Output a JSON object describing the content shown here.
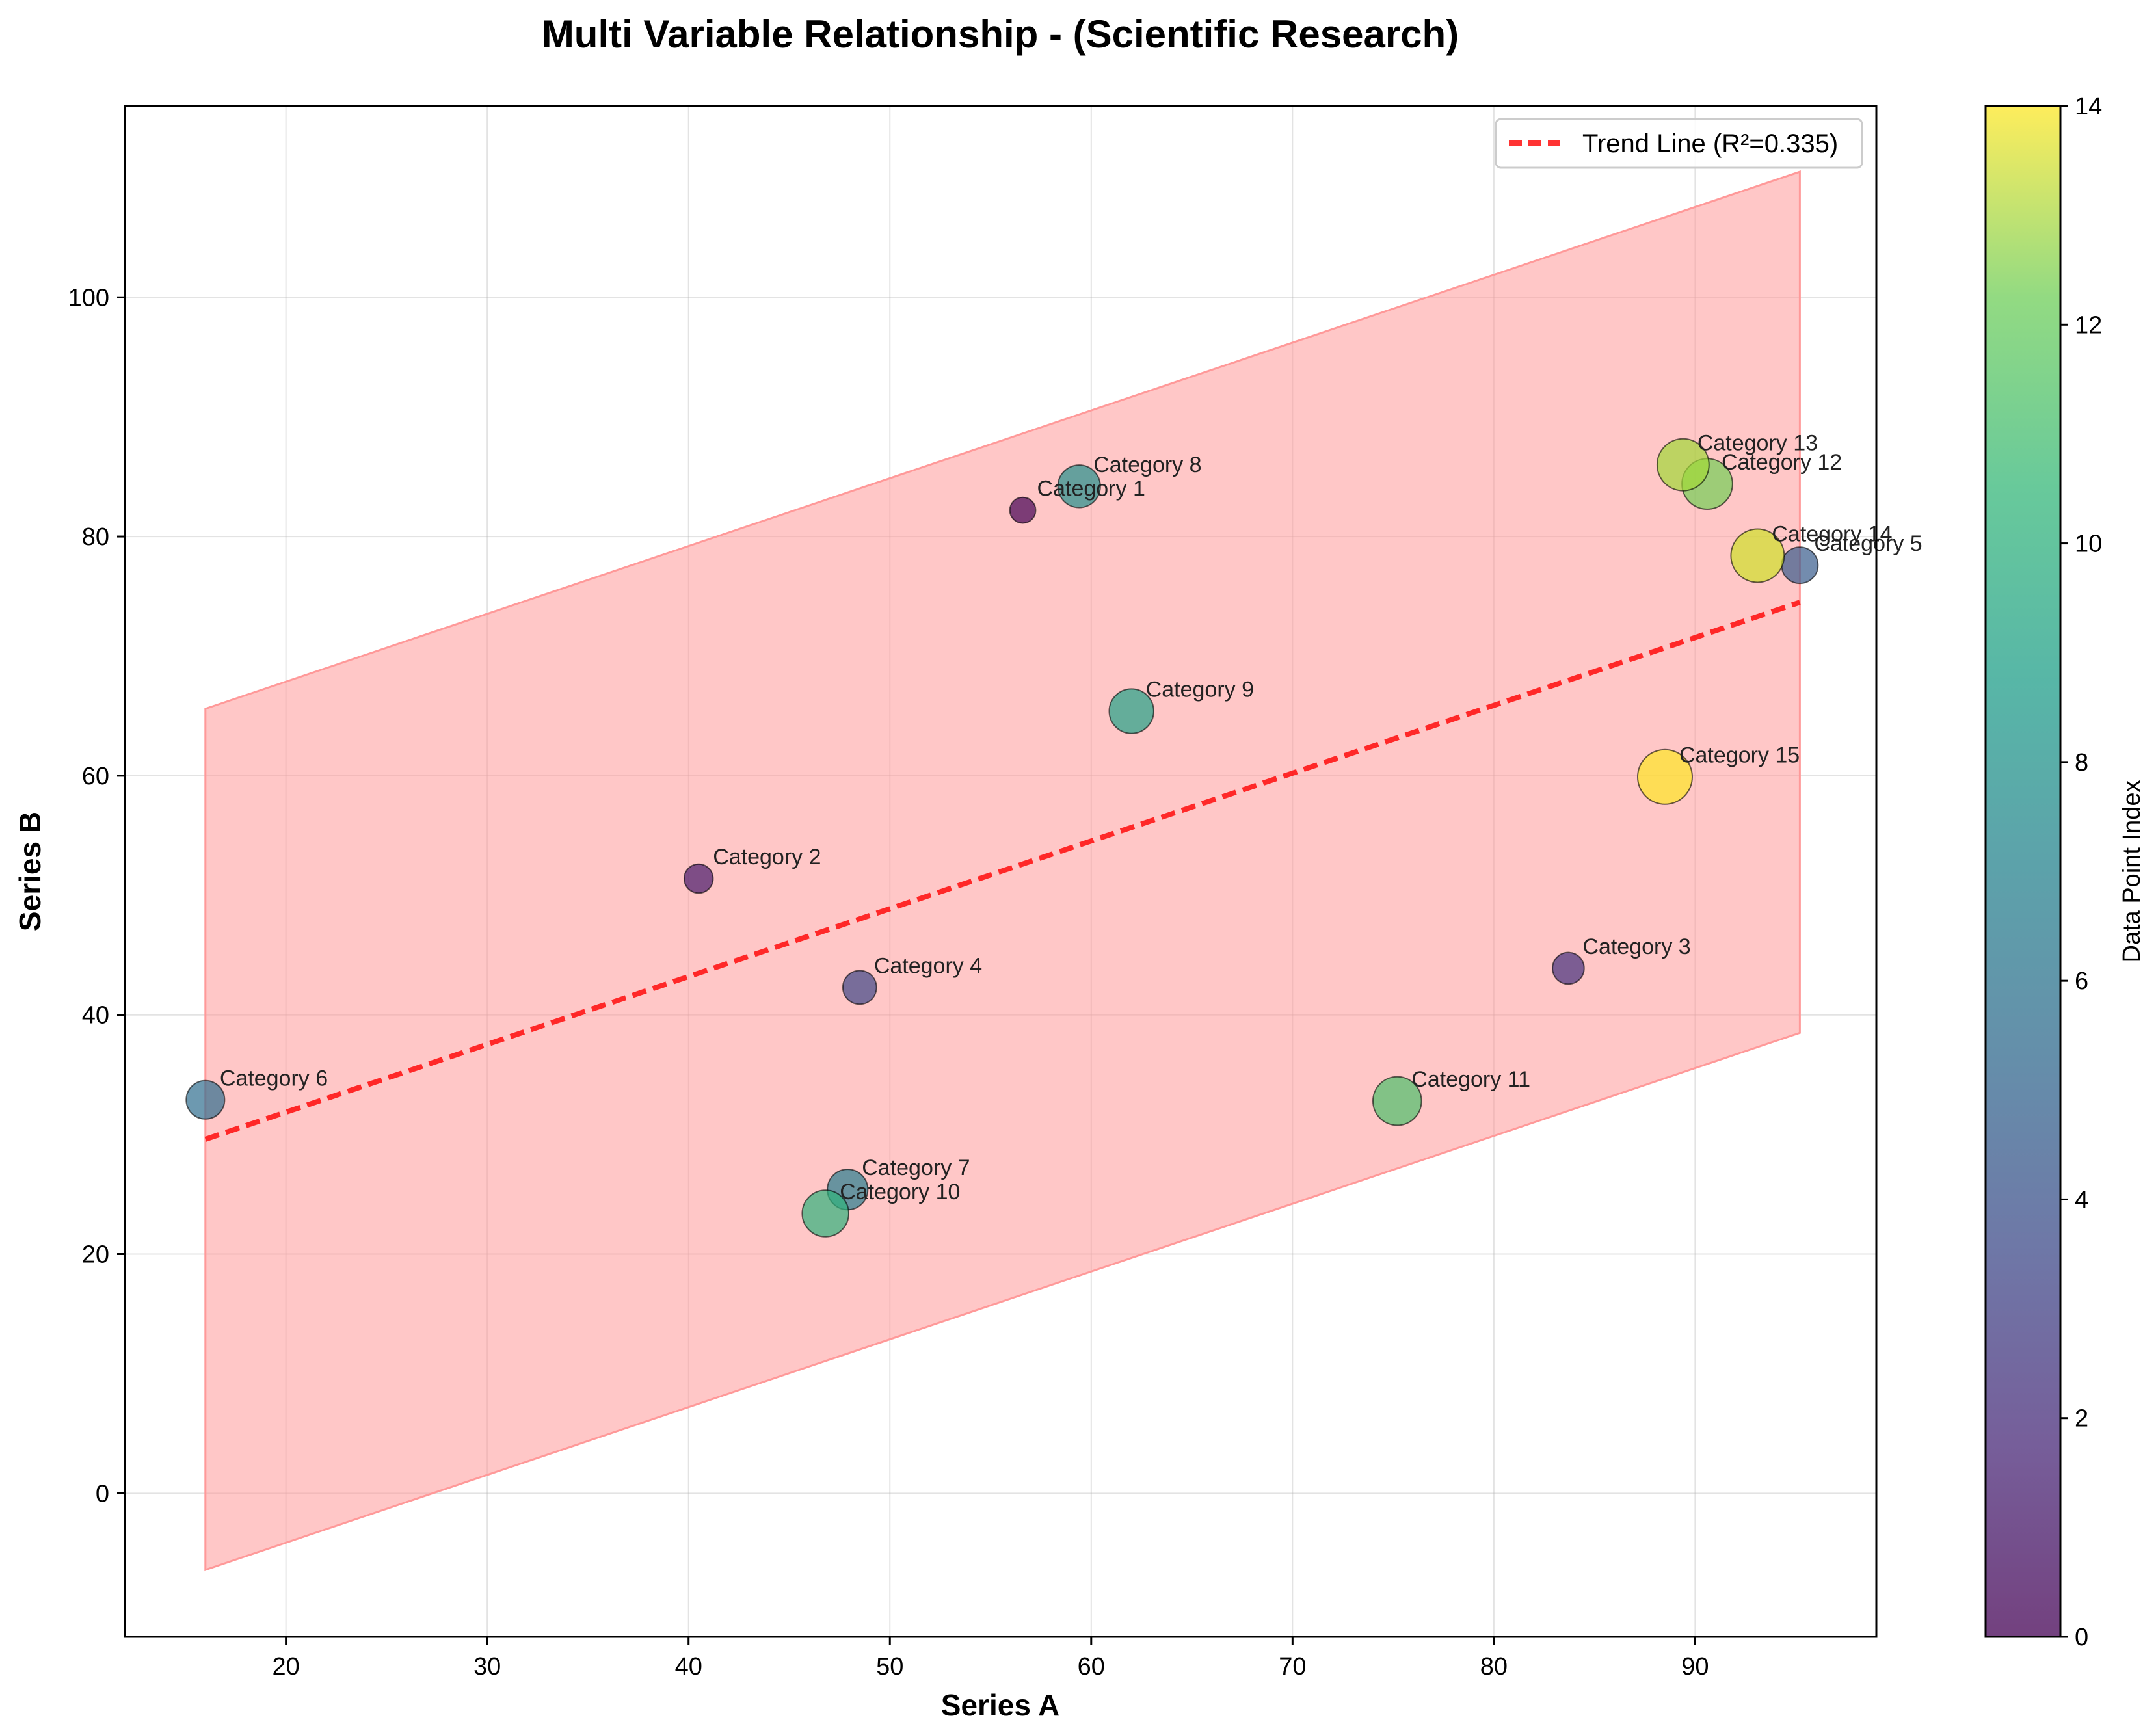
{
  "chart_data": {
    "type": "scatter",
    "title": "Multi Variable Relationship - (Scientific Research)",
    "xlabel": "Series A",
    "ylabel": "Series B",
    "xlim": [
      12,
      99
    ],
    "ylim": [
      -12,
      116
    ],
    "xticks": [
      20,
      30,
      40,
      50,
      60,
      70,
      80,
      90
    ],
    "yticks": [
      0,
      20,
      40,
      60,
      80,
      100
    ],
    "grid": true,
    "legend_placement": "top-right",
    "points": [
      {
        "name": "Category 1",
        "x": 56.6,
        "y": 82.2,
        "color_value": 0,
        "size": 0.15
      },
      {
        "name": "Category 2",
        "x": 40.5,
        "y": 51.4,
        "color_value": 1,
        "size": 0.24
      },
      {
        "name": "Category 3",
        "x": 83.7,
        "y": 43.9,
        "color_value": 2,
        "size": 0.32
      },
      {
        "name": "Category 4",
        "x": 48.5,
        "y": 42.3,
        "color_value": 3,
        "size": 0.38
      },
      {
        "name": "Category 5",
        "x": 95.2,
        "y": 77.6,
        "color_value": 4,
        "size": 0.46
      },
      {
        "name": "Category 6",
        "x": 16.0,
        "y": 32.9,
        "color_value": 5,
        "size": 0.52
      },
      {
        "name": "Category 7",
        "x": 47.9,
        "y": 25.4,
        "color_value": 6,
        "size": 0.58
      },
      {
        "name": "Category 8",
        "x": 59.4,
        "y": 84.2,
        "color_value": 7,
        "size": 0.64
      },
      {
        "name": "Category 9",
        "x": 62.0,
        "y": 65.4,
        "color_value": 8,
        "size": 0.7
      },
      {
        "name": "Category 10",
        "x": 46.8,
        "y": 23.4,
        "color_value": 9,
        "size": 0.76
      },
      {
        "name": "Category 11",
        "x": 75.2,
        "y": 32.8,
        "color_value": 10,
        "size": 0.82
      },
      {
        "name": "Category 12",
        "x": 90.6,
        "y": 84.4,
        "color_value": 11,
        "size": 0.88
      },
      {
        "name": "Category 13",
        "x": 89.4,
        "y": 86.0,
        "color_value": 12,
        "size": 0.92
      },
      {
        "name": "Category 14",
        "x": 93.1,
        "y": 78.4,
        "color_value": 13,
        "size": 0.96
      },
      {
        "name": "Category 15",
        "x": 88.5,
        "y": 59.9,
        "color_value": 14,
        "size": 1.0
      }
    ],
    "trend_line": {
      "label": "Trend Line (R²=0.335)",
      "x_start": 16.0,
      "y_start": 29.6,
      "x_end": 95.2,
      "y_end": 74.5,
      "band_offset": 36,
      "color": "#ff0000"
    },
    "band_color": "#ff9999",
    "colorbar": {
      "label": "Data Point Index",
      "range": [
        0,
        14
      ],
      "ticks": [
        0,
        2,
        4,
        6,
        8,
        10,
        12,
        14
      ],
      "colormap": "viridis"
    }
  }
}
